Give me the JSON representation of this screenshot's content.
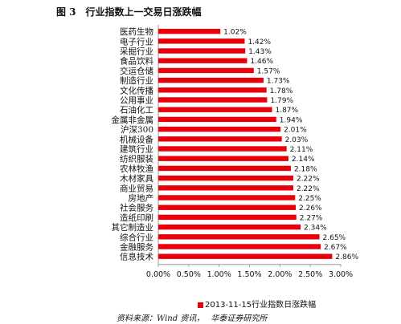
{
  "figure": {
    "number": "图 3",
    "title": "行业指数上一交易日涨跌幅"
  },
  "source": {
    "label": "资料来源：Wind 资讯，",
    "org": "华泰证券研究所"
  },
  "colors": {
    "bar": "#e8000b",
    "axis": "#999999",
    "text": "#111111"
  },
  "chart_data": {
    "type": "bar",
    "orientation": "horizontal",
    "title": "",
    "legend": [
      "2013-11-15行业指数日涨跌幅"
    ],
    "legend_position": "bottom",
    "grid": false,
    "xlim": [
      0,
      0.03
    ],
    "x_ticks": [
      "0.00%",
      "0.50%",
      "1.00%",
      "1.50%",
      "2.00%",
      "2.50%",
      "3.00%"
    ],
    "categories": [
      "医药生物",
      "电子行业",
      "采掘行业",
      "食品饮料",
      "交运仓储",
      "制造行业",
      "文化传播",
      "公用事业",
      "石油化工",
      "金属非金属",
      "沪深300",
      "机械设备",
      "建筑行业",
      "纺织服装",
      "农林牧渔",
      "木材家具",
      "商业贸易",
      "房地产",
      "社会服务",
      "造纸印刷",
      "其它制造业",
      "综合行业",
      "金融服务",
      "信息技术"
    ],
    "values": [
      0.0102,
      0.0142,
      0.0143,
      0.0146,
      0.0157,
      0.0173,
      0.0178,
      0.0179,
      0.0187,
      0.0194,
      0.0201,
      0.0203,
      0.0211,
      0.0214,
      0.0218,
      0.0222,
      0.0222,
      0.0225,
      0.0226,
      0.0227,
      0.0234,
      0.0265,
      0.0267,
      0.0286
    ],
    "value_labels": [
      "1.02%",
      "1.42%",
      "1.43%",
      "1.46%",
      "1.57%",
      "1.73%",
      "1.78%",
      "1.79%",
      "1.87%",
      "1.94%",
      "2.01%",
      "2.03%",
      "2.11%",
      "2.14%",
      "2.18%",
      "2.22%",
      "2.22%",
      "2.25%",
      "2.26%",
      "2.27%",
      "2.34%",
      "2.65%",
      "2.67%",
      "2.86%"
    ]
  }
}
